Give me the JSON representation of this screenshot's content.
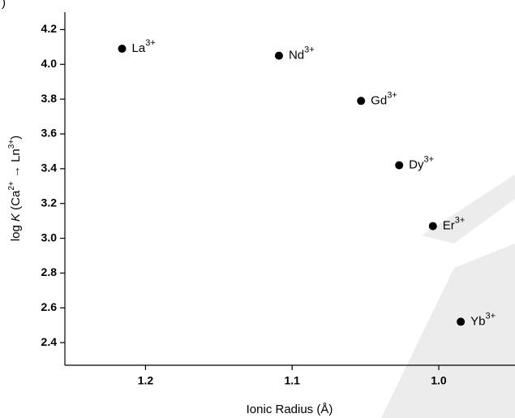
{
  "chart_data": {
    "type": "scatter",
    "panel_label": ")",
    "x_label": "Ionic Radius (Å)",
    "y_label": [
      {
        "text": "log "
      },
      {
        "text": "K",
        "style": "italic"
      },
      {
        "text": " (Ca"
      },
      {
        "text": "2+",
        "style": "sup"
      },
      {
        "text": " → Ln"
      },
      {
        "text": "3+",
        "style": "sup"
      },
      {
        "text": ")"
      }
    ],
    "x": [
      1.216,
      1.109,
      1.053,
      1.027,
      1.004,
      0.985
    ],
    "values": [
      4.09,
      4.05,
      3.79,
      3.42,
      3.07,
      2.52
    ],
    "point_labels": [
      {
        "text": "La",
        "sup": "3+"
      },
      {
        "text": "Nd",
        "sup": "3+"
      },
      {
        "text": "Gd",
        "sup": "3+"
      },
      {
        "text": "Dy",
        "sup": "3+"
      },
      {
        "text": "Er",
        "sup": "3+"
      },
      {
        "text": "Yb",
        "sup": "3+"
      }
    ],
    "color": "#000000",
    "xlim": [
      1.255,
      0.948
    ],
    "ylim": [
      2.27,
      4.3
    ],
    "xticks": [
      1.2,
      1.1,
      {
        "value": 1.0,
        "label": "1.0"
      }
    ],
    "yticks": [
      2.4,
      2.6,
      2.8,
      {
        "value": 3.0,
        "label": "3.0"
      },
      3.2,
      3.4,
      3.6,
      3.8,
      {
        "value": 4.0,
        "label": "4.0"
      },
      4.2
    ]
  }
}
